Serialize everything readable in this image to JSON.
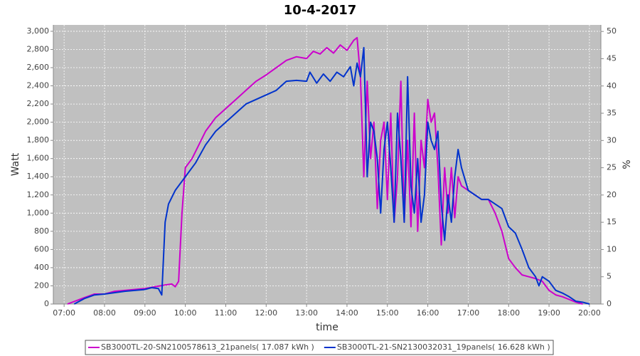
{
  "chart_data": {
    "type": "line",
    "title": "10-4-2017",
    "x_label": "time",
    "y_label": "Watt",
    "y2_label": "%",
    "xlim": [
      404,
      1217
    ],
    "xticks": [
      {
        "value": 420,
        "label": "07:00"
      },
      {
        "value": 480,
        "label": "08:00"
      },
      {
        "value": 540,
        "label": "09:00"
      },
      {
        "value": 600,
        "label": "10:00"
      },
      {
        "value": 660,
        "label": "11:00"
      },
      {
        "value": 720,
        "label": "12:00"
      },
      {
        "value": 780,
        "label": "13:00"
      },
      {
        "value": 840,
        "label": "14:00"
      },
      {
        "value": 900,
        "label": "15:00"
      },
      {
        "value": 960,
        "label": "16:00"
      },
      {
        "value": 1020,
        "label": "17:00"
      },
      {
        "value": 1080,
        "label": "18:00"
      },
      {
        "value": 1140,
        "label": "19:00"
      },
      {
        "value": 1200,
        "label": "20:00"
      }
    ],
    "ylim": [
      0,
      3070
    ],
    "yticks": [
      0,
      200,
      400,
      600,
      800,
      {
        "value": 1000,
        "label": "1,000"
      },
      {
        "value": 1200,
        "label": "1,200"
      },
      {
        "value": 1400,
        "label": "1,400"
      },
      {
        "value": 1600,
        "label": "1,600"
      },
      {
        "value": 1800,
        "label": "1,800"
      },
      {
        "value": 2000,
        "label": "2,000"
      },
      {
        "value": 2200,
        "label": "2,200"
      },
      {
        "value": 2400,
        "label": "2,400"
      },
      {
        "value": 2600,
        "label": "2,600"
      },
      {
        "value": 2800,
        "label": "2,800"
      },
      {
        "value": 3000,
        "label": "3,000"
      }
    ],
    "y2lim": [
      0,
      51.2
    ],
    "y2ticks": [
      0,
      5,
      10,
      15,
      20,
      25,
      30,
      35,
      40,
      45,
      50
    ],
    "grid": true,
    "legend": "bottom",
    "series": [
      {
        "name": "SB3000TL-20-SN2100578613_21panels( 17.087 kWh )",
        "color": "#cc00cc",
        "x": [
          425,
          450,
          465,
          480,
          495,
          510,
          540,
          555,
          570,
          580,
          585,
          590,
          595,
          600,
          610,
          620,
          630,
          645,
          660,
          675,
          690,
          705,
          720,
          735,
          750,
          765,
          780,
          790,
          800,
          810,
          820,
          830,
          840,
          850,
          855,
          860,
          865,
          870,
          875,
          880,
          885,
          890,
          895,
          900,
          905,
          910,
          915,
          920,
          925,
          930,
          935,
          940,
          945,
          950,
          955,
          960,
          965,
          970,
          975,
          980,
          985,
          990,
          995,
          1000,
          1005,
          1010,
          1020,
          1030,
          1040,
          1050,
          1060,
          1070,
          1080,
          1090,
          1100,
          1110,
          1120,
          1130,
          1140,
          1150,
          1160,
          1170,
          1180,
          1190
        ],
        "values": [
          0,
          70,
          110,
          110,
          140,
          150,
          170,
          190,
          210,
          220,
          190,
          250,
          1000,
          1500,
          1600,
          1750,
          1900,
          2050,
          2150,
          2250,
          2350,
          2450,
          2520,
          2600,
          2680,
          2720,
          2700,
          2780,
          2750,
          2820,
          2760,
          2850,
          2790,
          2900,
          2930,
          2500,
          1400,
          2450,
          1600,
          2000,
          1050,
          1800,
          2000,
          1150,
          2100,
          900,
          1400,
          2450,
          900,
          1800,
          850,
          2100,
          800,
          1800,
          1500,
          2250,
          2000,
          2100,
          1500,
          650,
          1500,
          1000,
          1500,
          950,
          1400,
          1300,
          1250,
          1200,
          1150,
          1150,
          1000,
          800,
          500,
          400,
          320,
          300,
          280,
          250,
          150,
          100,
          80,
          50,
          20,
          0
        ]
      },
      {
        "name": "SB3000TL-21-SN2130032031_19panels( 16.628 kWh )",
        "color": "#0033cc",
        "x": [
          435,
          450,
          465,
          480,
          510,
          540,
          550,
          560,
          565,
          570,
          575,
          585,
          600,
          615,
          630,
          645,
          660,
          675,
          690,
          705,
          720,
          735,
          750,
          765,
          780,
          785,
          795,
          805,
          815,
          825,
          835,
          845,
          850,
          855,
          860,
          865,
          868,
          870,
          875,
          880,
          885,
          890,
          895,
          900,
          905,
          910,
          915,
          920,
          925,
          930,
          935,
          940,
          945,
          950,
          955,
          960,
          965,
          970,
          975,
          980,
          985,
          990,
          995,
          1000,
          1005,
          1010,
          1020,
          1030,
          1040,
          1050,
          1060,
          1070,
          1080,
          1090,
          1100,
          1110,
          1120,
          1125,
          1130,
          1140,
          1150,
          1160,
          1170,
          1180,
          1190,
          1200
        ],
        "values": [
          0,
          60,
          100,
          110,
          140,
          160,
          180,
          170,
          100,
          900,
          1100,
          1250,
          1400,
          1550,
          1750,
          1900,
          2000,
          2100,
          2200,
          2250,
          2300,
          2350,
          2450,
          2460,
          2450,
          2550,
          2430,
          2530,
          2450,
          2550,
          2500,
          2610,
          2400,
          2650,
          2500,
          2820,
          2000,
          1400,
          2000,
          1900,
          1600,
          1000,
          1700,
          2000,
          1500,
          900,
          2100,
          1600,
          900,
          2500,
          1300,
          1000,
          1600,
          900,
          1200,
          2000,
          1800,
          1700,
          1900,
          1100,
          700,
          1200,
          900,
          1400,
          1700,
          1500,
          1250,
          1200,
          1150,
          1150,
          1100,
          1050,
          850,
          780,
          600,
          400,
          300,
          200,
          300,
          250,
          150,
          120,
          80,
          30,
          20,
          0
        ]
      }
    ]
  }
}
